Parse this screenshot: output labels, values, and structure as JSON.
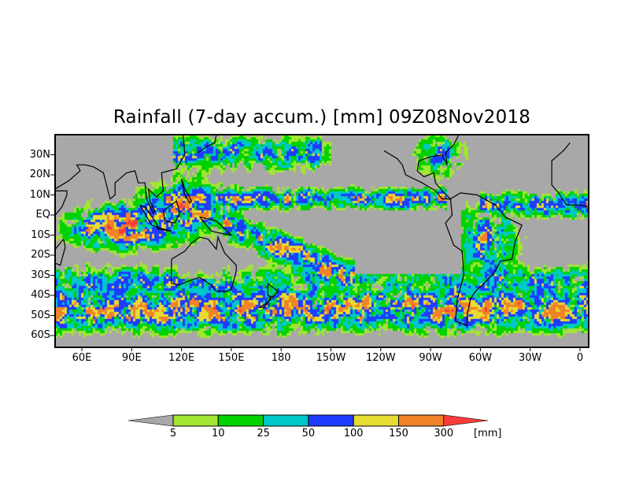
{
  "title": "Rainfall (7-day accum.) [mm] 09Z08Nov2018",
  "map": {
    "lat_labels": [
      "30N",
      "20N",
      "10N",
      "EQ",
      "10S",
      "20S",
      "30S",
      "40S",
      "50S",
      "60S"
    ],
    "lat_values": [
      30,
      20,
      10,
      0,
      -10,
      -20,
      -30,
      -40,
      -50,
      -60
    ],
    "lon_labels": [
      "60E",
      "90E",
      "120E",
      "150E",
      "180",
      "150W",
      "120W",
      "90W",
      "60W",
      "30W",
      "0"
    ],
    "lon_values": [
      60,
      90,
      120,
      150,
      180,
      210,
      240,
      270,
      300,
      330,
      360
    ],
    "lon_range": [
      44,
      365
    ],
    "lat_range": [
      -66,
      40
    ],
    "land_color": "#000000",
    "background_color": "#a8a8a8"
  },
  "legend": {
    "unit": "[mm]",
    "thresholds": [
      "5",
      "10",
      "25",
      "50",
      "100",
      "150",
      "300"
    ],
    "threshold_values": [
      5,
      10,
      25,
      50,
      100,
      150,
      300
    ],
    "colors": [
      "#a8a8a8",
      "#a0e632",
      "#00d200",
      "#00c8c8",
      "#1e3cff",
      "#e6dc32",
      "#f08228",
      "#fa3c3c"
    ]
  }
}
